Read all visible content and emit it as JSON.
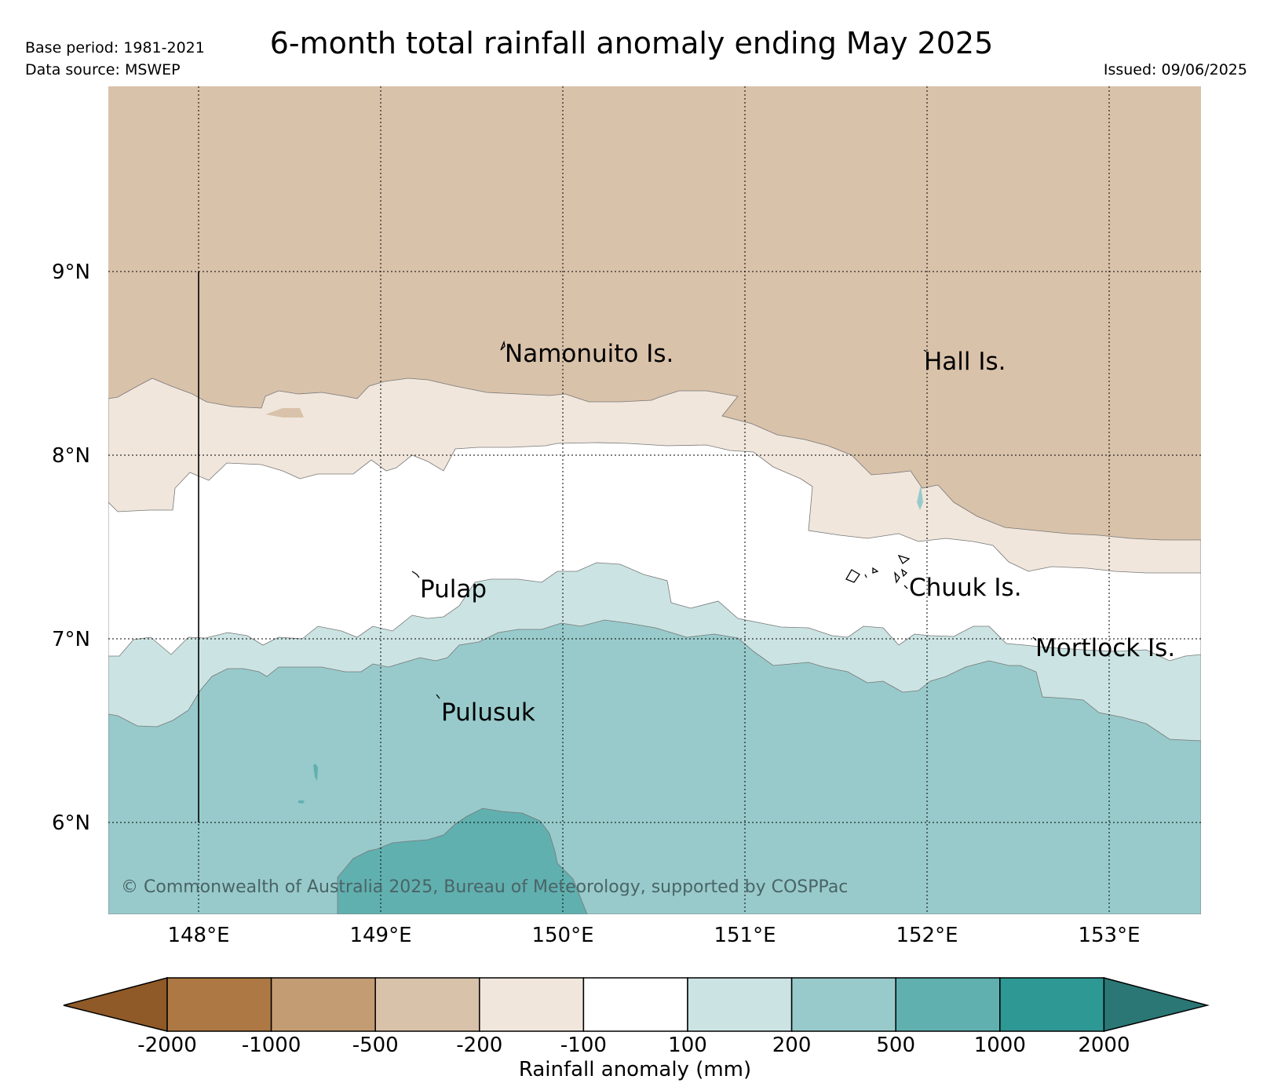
{
  "header": {
    "base_period": "Base period: 1981-2021",
    "data_source": "Data source: MSWEP",
    "issued": "Issued: 09/06/2025",
    "title": "6-month total rainfall anomaly ending May 2025"
  },
  "map": {
    "latitude_labels": [
      "9°N",
      "8°N",
      "7°N",
      "6°N"
    ],
    "longitude_labels": [
      "148°E",
      "149°E",
      "150°E",
      "151°E",
      "152°E",
      "153°E"
    ],
    "places": [
      {
        "name": "Namonuito Is."
      },
      {
        "name": "Hall Is."
      },
      {
        "name": "Pulap"
      },
      {
        "name": "Chuuk Is."
      },
      {
        "name": "Mortlock Is."
      },
      {
        "name": "Pulusuk"
      }
    ],
    "copyright": "© Commonwealth of Australia 2025, Bureau of Meteorology, supported by COSPPac",
    "regions": [
      {
        "category": "-500 to -200",
        "color": "#d9c2aa"
      },
      {
        "category": "-200 to -100",
        "color": "#f0e6dc"
      },
      {
        "category": "-100 to 100",
        "color": "#ffffff"
      },
      {
        "category": "100 to 200",
        "color": "#cbe4e3"
      },
      {
        "category": "200 to 500",
        "color": "#98cacb"
      },
      {
        "category": "500 to 1000",
        "color": "#61b0b0"
      }
    ]
  },
  "colorbar": {
    "title": "Rainfall anomaly (mm)",
    "tick_labels": [
      "-2000",
      "-1000",
      "-500",
      "-200",
      "-100",
      "100",
      "200",
      "500",
      "1000",
      "2000"
    ],
    "colors": [
      "#8f5a28",
      "#ad7843",
      "#c49c74",
      "#d9c2aa",
      "#f0e6dc",
      "#ffffff",
      "#cbe4e3",
      "#98cacb",
      "#61b0b0",
      "#2e9894",
      "#2a7775"
    ]
  }
}
